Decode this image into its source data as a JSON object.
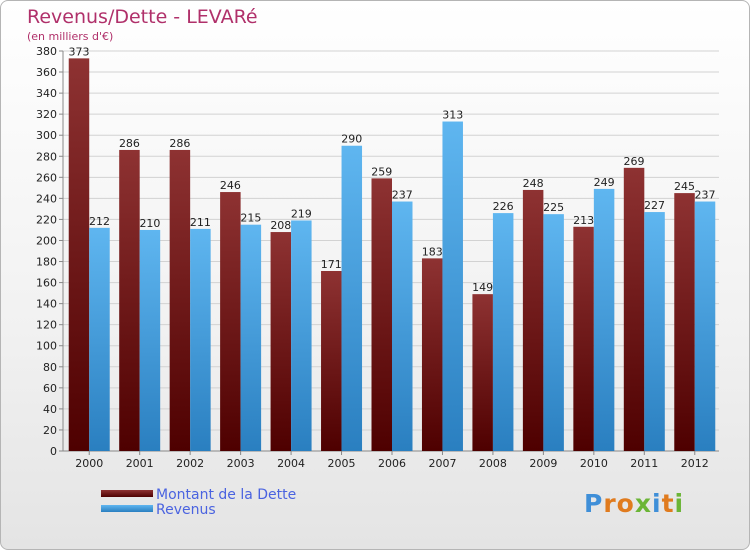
{
  "header": {
    "title": "Revenus/Dette - LEVARé",
    "unit": "(en milliers d'€)"
  },
  "chart_data": {
    "type": "bar",
    "categories": [
      "2000",
      "2001",
      "2002",
      "2003",
      "2004",
      "2005",
      "2006",
      "2007",
      "2008",
      "2009",
      "2010",
      "2011",
      "2012"
    ],
    "series": [
      {
        "name": "Montant de la Dette",
        "color": "#7a1c1c",
        "values": [
          373,
          286,
          286,
          246,
          208,
          171,
          259,
          183,
          149,
          248,
          213,
          269,
          245
        ]
      },
      {
        "name": "Revenus",
        "color": "#4aa3e0",
        "values": [
          212,
          210,
          211,
          215,
          219,
          290,
          237,
          313,
          226,
          225,
          249,
          227,
          237
        ]
      }
    ],
    "ylim": [
      0,
      380
    ],
    "yticks": [
      0,
      20,
      40,
      60,
      80,
      100,
      120,
      140,
      160,
      180,
      200,
      220,
      240,
      260,
      280,
      300,
      320,
      340,
      360,
      380
    ],
    "grid": true,
    "legend_position": "bottom-left"
  },
  "legend": {
    "items": [
      {
        "label": "Montant de la Dette",
        "color": "#7a1c1c"
      },
      {
        "label": "Revenus",
        "color": "#4aa3e0"
      }
    ]
  },
  "brand": {
    "letters": [
      "P",
      "r",
      "o",
      "x",
      "i",
      "t",
      "i"
    ],
    "colors": [
      "#3f8fd8",
      "#e07b1e",
      "#e07b1e",
      "#6bb536",
      "#3f8fd8",
      "#e07b1e",
      "#6bb536"
    ]
  }
}
